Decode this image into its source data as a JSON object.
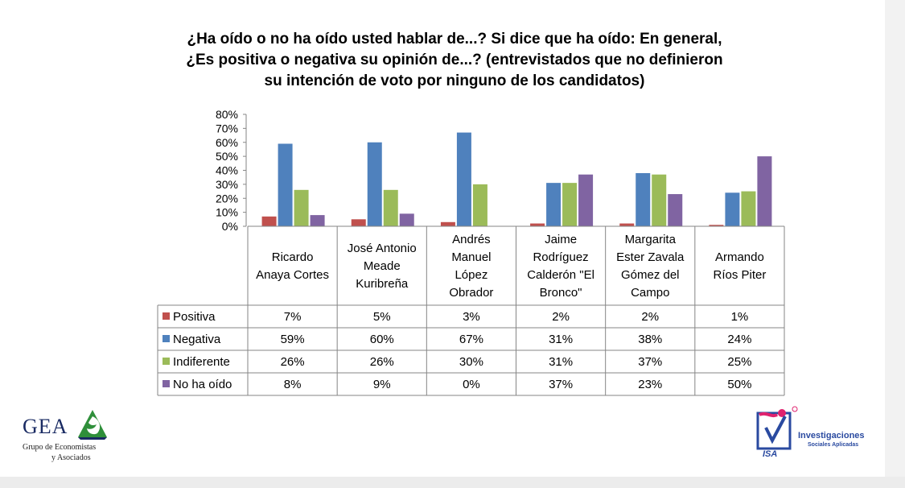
{
  "title": "¿Ha oído o no ha oído usted hablar de...?  Si dice que ha oído: En general, ¿Es positiva o negativa su opinión de...? (entrevistados que no definieron su intención de voto por ninguno de los candidatos)",
  "chart_data": {
    "type": "bar",
    "title": "¿Ha oído o no ha oído usted hablar de...?  Si dice que ha oído: En general, ¿Es positiva o negativa su opinión de...? (entrevistados que no definieron su intención de voto por ninguno de los candidatos)",
    "ylim": [
      0,
      80
    ],
    "yticks": [
      "0%",
      "10%",
      "20%",
      "30%",
      "40%",
      "50%",
      "60%",
      "70%",
      "80%"
    ],
    "categories": [
      [
        "Ricardo",
        "Anaya Cortes"
      ],
      [
        "José Antonio",
        "Meade",
        "Kuribreña"
      ],
      [
        "Andrés",
        "Manuel",
        "López",
        "Obrador"
      ],
      [
        "Jaime",
        "Rodríguez",
        "Calderón \"El",
        "Bronco\""
      ],
      [
        "Margarita",
        "Ester Zavala",
        "Gómez del",
        "Campo"
      ],
      [
        "Armando",
        "Ríos Piter"
      ]
    ],
    "series": [
      {
        "name": "Positiva",
        "color": "#c0504d",
        "values": [
          7,
          5,
          3,
          2,
          2,
          1
        ],
        "labels": [
          "7%",
          "5%",
          "3%",
          "2%",
          "2%",
          "1%"
        ]
      },
      {
        "name": "Negativa",
        "color": "#4f81bd",
        "values": [
          59,
          60,
          67,
          31,
          38,
          24
        ],
        "labels": [
          "59%",
          "60%",
          "67%",
          "31%",
          "38%",
          "24%"
        ]
      },
      {
        "name": "Indiferente",
        "color": "#9bbb59",
        "values": [
          26,
          26,
          30,
          31,
          37,
          25
        ],
        "labels": [
          "26%",
          "26%",
          "30%",
          "31%",
          "37%",
          "25%"
        ]
      },
      {
        "name": "No ha oído",
        "color": "#8064a2",
        "values": [
          8,
          9,
          0,
          37,
          23,
          50
        ],
        "labels": [
          "8%",
          "9%",
          "0%",
          "37%",
          "23%",
          "50%"
        ]
      }
    ],
    "legend": "data-table-left"
  },
  "logos": {
    "gea": {
      "word": "GEA",
      "line1": "Grupo de Economistas",
      "line2": "y Asociados"
    },
    "isa": {
      "mark": "ISA",
      "line1": "Investigaciones",
      "line2": "Sociales Aplicadas"
    }
  }
}
